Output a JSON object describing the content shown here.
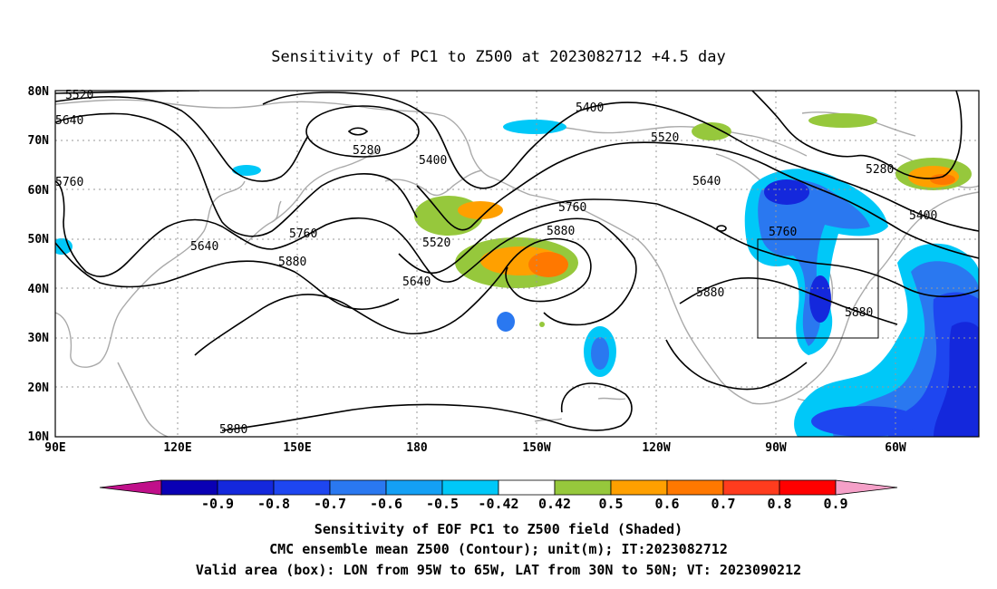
{
  "title": "Sensitivity of PC1 to Z500 at 2023082712 +4.5 day",
  "lat_labels": [
    "80N",
    "70N",
    "60N",
    "50N",
    "40N",
    "30N",
    "20N",
    "10N"
  ],
  "lon_labels": [
    "90E",
    "120E",
    "150E",
    "180",
    "150W",
    "120W",
    "90W",
    "60W"
  ],
  "contour_labels": [
    "5520",
    "5640",
    "5760",
    "5280",
    "5400",
    "5520",
    "5400",
    "5640",
    "5880",
    "5760",
    "5520",
    "5640",
    "5760",
    "5880",
    "5640",
    "5280",
    "5400",
    "5760",
    "5880",
    "5880",
    "5880"
  ],
  "colorbar": {
    "labels": [
      "-0.9",
      "-0.8",
      "-0.7",
      "-0.6",
      "-0.5",
      "-0.42",
      "0.42",
      "0.5",
      "0.6",
      "0.7",
      "0.8",
      "0.9"
    ],
    "colors": [
      "#c0108a",
      "#0a00b4",
      "#1428dc",
      "#1e46f0",
      "#2a78f0",
      "#14a0f5",
      "#00c8f8",
      "#ffffff",
      "#96c83c",
      "#ffa000",
      "#ff7800",
      "#ff3c1e",
      "#ff0000",
      "#f5a0c8"
    ]
  },
  "caption": {
    "line1": "Sensitivity of EOF PC1 to Z500 field (Shaded)",
    "line2": "CMC ensemble mean Z500 (Contour); unit(m); IT:2023082712",
    "line3": "Valid area (box): LON from 95W to 65W, LAT from 30N to 50N; VT: 2023090212"
  }
}
